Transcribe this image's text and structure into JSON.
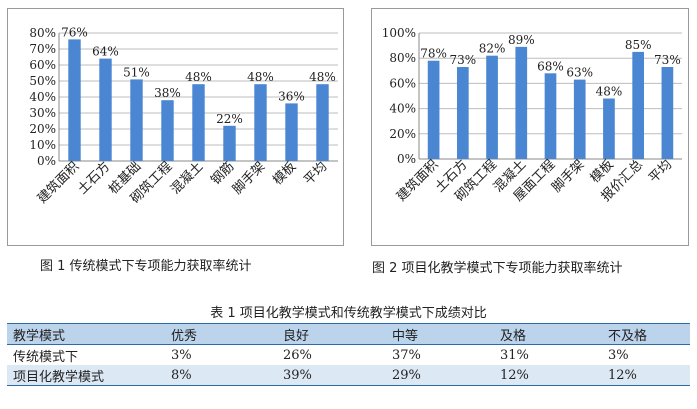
{
  "captions": {
    "fig1": "图 1  传统模式下专项能力获取率统计",
    "fig2": "图 2  项目化教学模式下专项能力获取率统计"
  },
  "table": {
    "title": "表 1  项目化教学模式和传统教学模式下成绩对比",
    "headers": [
      "教学模式",
      "优秀",
      "良好",
      "中等",
      "及格",
      "不及格"
    ],
    "rows": [
      [
        "传统模式下",
        "3%",
        "26%",
        "37%",
        "31%",
        "3%"
      ],
      [
        "项目化教学模式",
        "8%",
        "39%",
        "29%",
        "12%",
        "12%"
      ]
    ]
  },
  "chart_data": [
    {
      "type": "bar",
      "categories": [
        "建筑面积",
        "土石方",
        "桩基础",
        "砌筑工程",
        "混凝土",
        "钢筋",
        "脚手架",
        "模板",
        "平均"
      ],
      "values": [
        76,
        64,
        51,
        38,
        48,
        22,
        48,
        36,
        48
      ],
      "value_labels": [
        "76%",
        "64%",
        "51%",
        "38%",
        "48%",
        "22%",
        "48%",
        "36%",
        "48%"
      ],
      "ylim": [
        0,
        80
      ],
      "yticks": [
        0,
        10,
        20,
        30,
        40,
        50,
        60,
        70,
        80
      ],
      "ytick_labels": [
        "0%",
        "10%",
        "20%",
        "30%",
        "40%",
        "50%",
        "60%",
        "70%",
        "80%"
      ],
      "grid": true,
      "bar_color": "#4a86d1"
    },
    {
      "type": "bar",
      "categories": [
        "建筑面积",
        "土石方",
        "砌筑工程",
        "混凝土",
        "屋面工程",
        "脚手架",
        "模板",
        "报价汇总",
        "平均"
      ],
      "values": [
        78,
        73,
        82,
        89,
        68,
        63,
        48,
        85,
        73
      ],
      "value_labels": [
        "78%",
        "73%",
        "82%",
        "89%",
        "68%",
        "63%",
        "48%",
        "85%",
        "73%"
      ],
      "ylim": [
        0,
        100
      ],
      "yticks": [
        0,
        20,
        40,
        60,
        80,
        100
      ],
      "ytick_labels": [
        "0%",
        "20%",
        "40%",
        "60%",
        "80%",
        "100%"
      ],
      "grid": true,
      "bar_color": "#4a86d1"
    }
  ]
}
